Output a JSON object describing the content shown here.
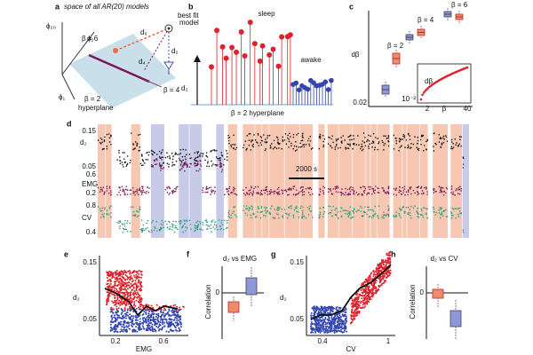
{
  "panels": {
    "a": {
      "label": "a",
      "title": "space of all AR(20) models",
      "phi20": "ϕ₂₀",
      "phi2": "ϕ₂",
      "phi1": "ϕ₁",
      "beta6": "β = 6",
      "d6": "d₆",
      "best_fit": [
        "best fit",
        "model"
      ],
      "d2": "d₂",
      "d4": "d₄",
      "hyperplane": [
        "β = 2",
        "hyperplane"
      ],
      "beta4": "β = 4"
    },
    "b": {
      "label": "b",
      "sleep": "sleep",
      "awake": "awake",
      "d2": "d₂",
      "hyperplane": "β = 2 hyperplane"
    },
    "c": {
      "label": "c",
      "ylabel": "dβ",
      "ytick": "0.02",
      "beta2": "β = 2",
      "beta4": "β = 4",
      "beta6": "β = 6",
      "inset": {
        "ylabel": "dβ",
        "ytick": "10⁻²",
        "xticks": [
          "2",
          "40"
        ],
        "xlabel": "β"
      }
    },
    "d": {
      "label": "d",
      "d2": {
        "name": "d₂",
        "ticks": [
          "0.15",
          "0.05"
        ]
      },
      "emg": {
        "name": "EMG",
        "ticks": [
          "0.6",
          "0.2"
        ]
      },
      "cv": {
        "name": "CV",
        "ticks": [
          "0.8",
          "0.4"
        ]
      },
      "scale_bar": "2000 s"
    },
    "e": {
      "label": "e",
      "ylabel": "d₂",
      "yticks": [
        "0.15",
        "0.05"
      ],
      "xticks": [
        "0.2",
        "0.6"
      ],
      "xlabel": "EMG"
    },
    "f": {
      "label": "f",
      "title": "d₂ vs EMG",
      "ylabel": "Correlation",
      "ytick": "0"
    },
    "g": {
      "label": "g",
      "ylabel": "d₂",
      "yticks": [
        "0.15",
        "0.05"
      ],
      "xticks": [
        "0.4",
        "1"
      ],
      "xlabel": "CV"
    },
    "h": {
      "label": "h",
      "title": "d₂ vs CV",
      "ylabel": "Correlation",
      "ytick": "0"
    }
  }
}
